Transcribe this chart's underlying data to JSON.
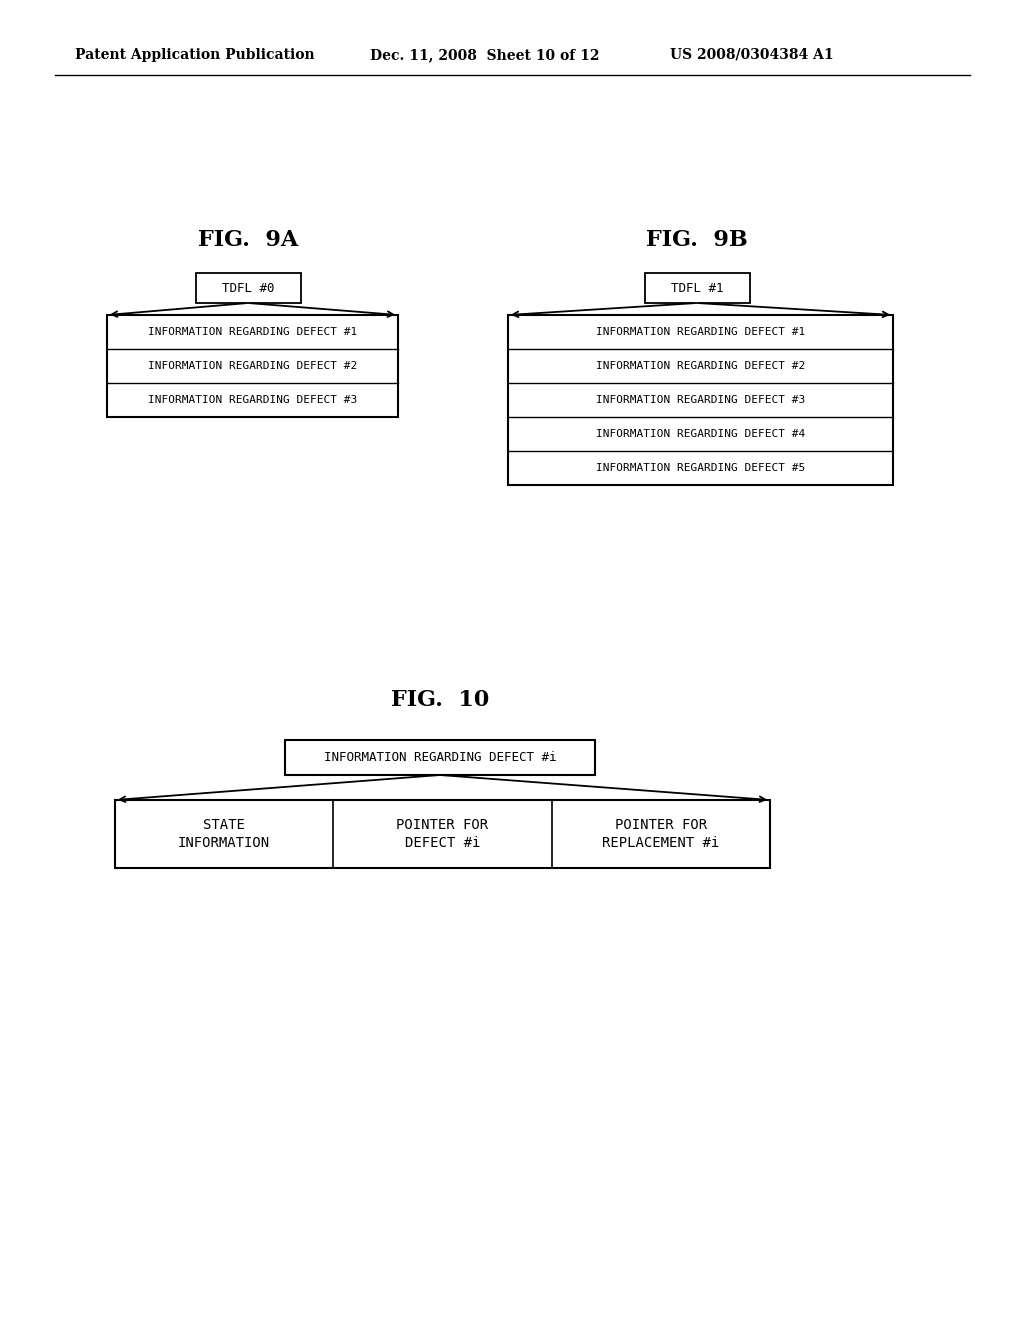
{
  "bg_color": "#ffffff",
  "header_left": "Patent Application Publication",
  "header_mid": "Dec. 11, 2008  Sheet 10 of 12",
  "header_right": "US 2008/0304384 A1",
  "fig9a_title": "FIG.  9A",
  "fig9b_title": "FIG.  9B",
  "fig10_title": "FIG.  10",
  "tdfl0_label": "TDFL #0",
  "tdfl1_label": "TDFL #1",
  "fig9a_rows": [
    "INFORMATION REGARDING DEFECT #1",
    "INFORMATION REGARDING DEFECT #2",
    "INFORMATION REGARDING DEFECT #3"
  ],
  "fig9b_rows": [
    "INFORMATION REGARDING DEFECT #1",
    "INFORMATION REGARDING DEFECT #2",
    "INFORMATION REGARDING DEFECT #3",
    "INFORMATION REGARDING DEFECT #4",
    "INFORMATION REGARDING DEFECT #5"
  ],
  "fig10_top_label": "INFORMATION REGARDING DEFECT #i",
  "fig10_bottom_cols": [
    "STATE\nINFORMATION",
    "POINTER FOR\nDEFECT #i",
    "POINTER FOR\nREPLACEMENT #i"
  ],
  "text_color": "#000000",
  "box_edge_color": "#000000",
  "box_fill_color": "#ffffff",
  "header_fontsize": 10,
  "fig_title_fontsize": 16,
  "row_fontsize": 8,
  "label_fontsize": 9
}
